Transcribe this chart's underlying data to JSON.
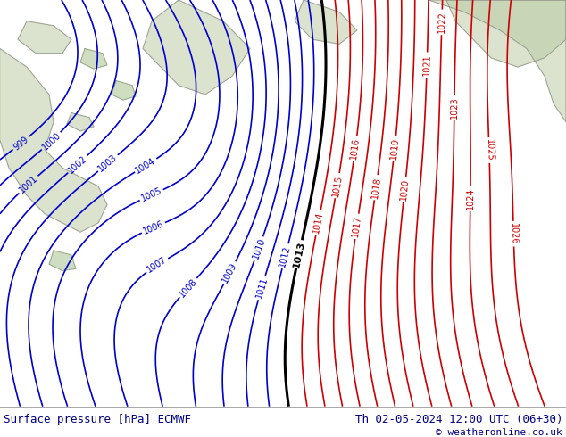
{
  "title_left": "Surface pressure [hPa] ECMWF",
  "title_right": "Th 02-05-2024 12:00 UTC (06+30)",
  "copyright": "© weatheronline.co.uk",
  "background_map_color": "#c8e8c0",
  "contour_color_blue": "#0000cc",
  "contour_color_red": "#cc0000",
  "contour_color_black": "#000000",
  "footer_bg_color": "#ffffff",
  "footer_text_color": "#000080",
  "figsize": [
    6.34,
    4.9
  ],
  "dpi": 100
}
